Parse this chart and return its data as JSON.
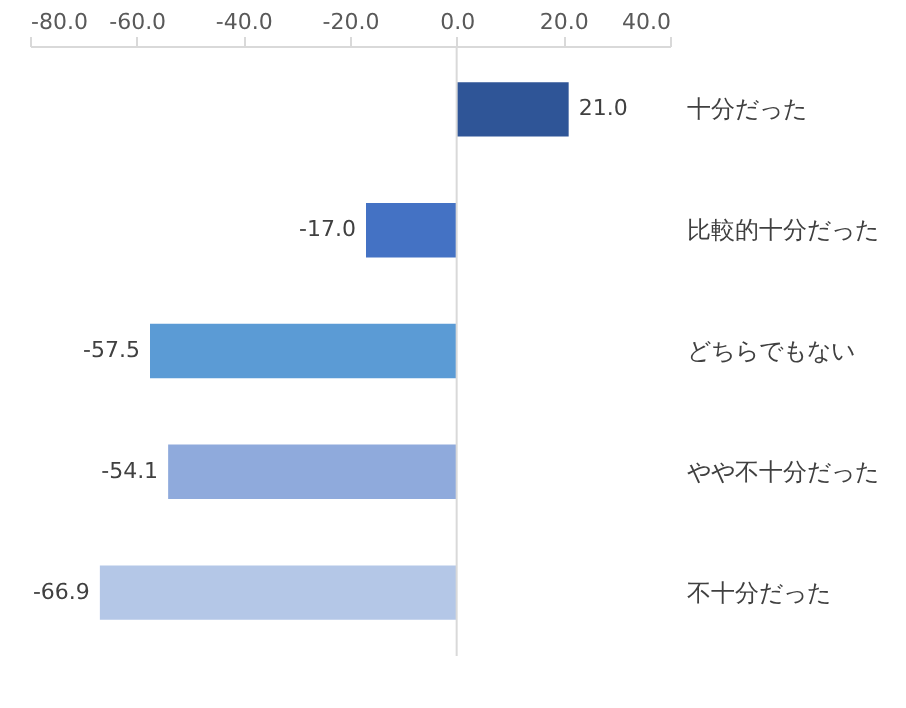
{
  "chart_data": {
    "type": "bar",
    "orientation": "horizontal",
    "categories": [
      "十分だった",
      "比較的十分だった",
      "どちらでもない",
      "やや不十分だった",
      "不十分だった"
    ],
    "values": [
      21.0,
      -17.0,
      -57.5,
      -54.1,
      -66.9
    ],
    "colors": [
      "#2f5597",
      "#4472c4",
      "#5b9bd5",
      "#8faadc",
      "#b4c7e7"
    ],
    "xlim": [
      -80,
      40
    ],
    "xticks": [
      {
        "value": -80,
        "label": "-80.0"
      },
      {
        "value": -60,
        "label": "-60.0"
      },
      {
        "value": -40,
        "label": "-40.0"
      },
      {
        "value": -20,
        "label": "-20.0"
      },
      {
        "value": 0,
        "label": "0.0"
      },
      {
        "value": 20,
        "label": "20.0"
      },
      {
        "value": 40,
        "label": "40.0"
      }
    ],
    "value_labels": [
      "21.0",
      "-17.0",
      "-57.5",
      "-54.1",
      "-66.9"
    ]
  }
}
